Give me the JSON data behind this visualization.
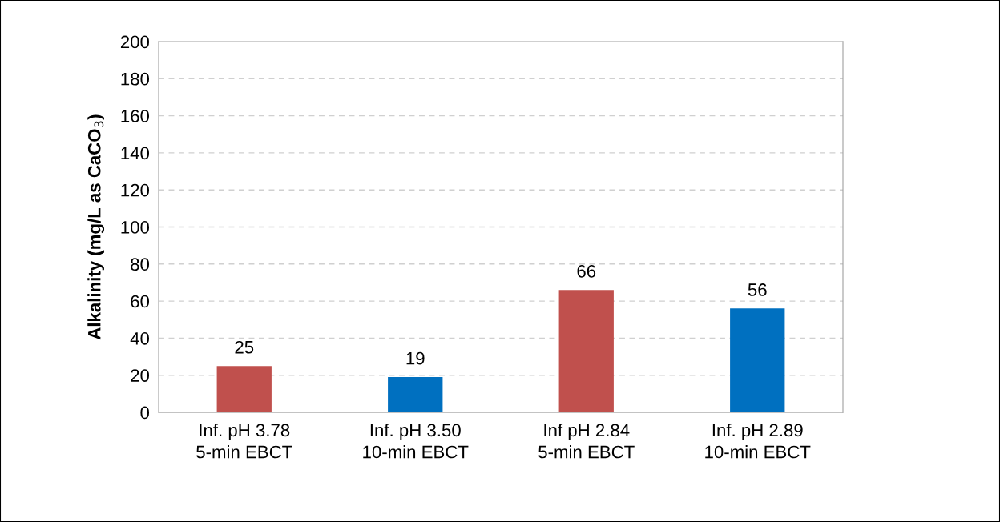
{
  "chart_data": {
    "type": "bar",
    "ylabel": "Alkalinity (mg/L as CaCO$_{3}$)",
    "categories": [
      "Inf. pH 3.78\n5-min EBCT",
      "Inf. pH 3.50\n10-min EBCT",
      "Inf pH 2.84\n5-min EBCT",
      "Inf. pH 2.89\n10-min EBCT"
    ],
    "values": [
      25,
      19,
      66,
      56
    ],
    "colors": [
      "#c0504d",
      "#0070c0",
      "#c0504d",
      "#0070c0"
    ],
    "ylim": [
      0,
      200
    ],
    "yticks": [
      0,
      20,
      40,
      60,
      80,
      100,
      120,
      140,
      160,
      180,
      200
    ],
    "grid": "y",
    "data_labels": true,
    "legend": false
  }
}
